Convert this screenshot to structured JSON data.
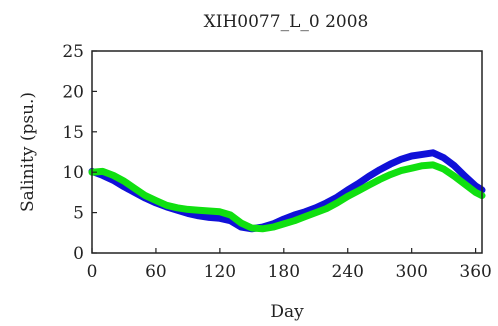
{
  "chart_data": {
    "type": "line",
    "title": "XIH0077_L_0 2008",
    "xlabel": "Day",
    "ylabel": "Salinity (psu.)",
    "xlim": [
      0,
      366
    ],
    "ylim": [
      0,
      25
    ],
    "x_ticks": [
      0,
      60,
      120,
      180,
      240,
      300,
      360
    ],
    "y_ticks": [
      0,
      5,
      10,
      15,
      20,
      25
    ],
    "x_tick_labels": [
      "0",
      "60",
      "120",
      "180",
      "240",
      "300",
      "360"
    ],
    "y_tick_labels": [
      "0",
      "5",
      "10",
      "15",
      "20",
      "25"
    ],
    "grid": false,
    "legend": "none",
    "series": [
      {
        "color": "#1010d8",
        "x": [
          0,
          10,
          20,
          30,
          40,
          50,
          60,
          70,
          80,
          90,
          100,
          110,
          120,
          130,
          140,
          150,
          160,
          170,
          180,
          190,
          200,
          210,
          220,
          230,
          240,
          250,
          260,
          270,
          280,
          290,
          300,
          310,
          320,
          330,
          340,
          350,
          360,
          366
        ],
        "y": [
          10.1,
          9.6,
          9.0,
          8.2,
          7.5,
          6.8,
          6.2,
          5.7,
          5.3,
          4.9,
          4.6,
          4.4,
          4.3,
          4.0,
          3.2,
          3.0,
          3.2,
          3.6,
          4.2,
          4.7,
          5.1,
          5.6,
          6.2,
          6.9,
          7.8,
          8.6,
          9.5,
          10.3,
          11.0,
          11.6,
          12.0,
          12.2,
          12.4,
          11.8,
          10.8,
          9.5,
          8.3,
          7.8
        ]
      },
      {
        "color": "#10e010",
        "x": [
          0,
          10,
          20,
          30,
          40,
          50,
          60,
          70,
          80,
          90,
          100,
          110,
          120,
          130,
          140,
          150,
          160,
          170,
          180,
          190,
          200,
          210,
          220,
          230,
          240,
          250,
          260,
          270,
          280,
          290,
          300,
          310,
          320,
          330,
          340,
          350,
          360,
          366
        ],
        "y": [
          10.0,
          10.1,
          9.6,
          8.9,
          8.0,
          7.1,
          6.5,
          5.9,
          5.6,
          5.4,
          5.3,
          5.2,
          5.1,
          4.7,
          3.7,
          3.1,
          3.0,
          3.2,
          3.6,
          4.0,
          4.5,
          5.0,
          5.5,
          6.2,
          7.0,
          7.7,
          8.4,
          9.1,
          9.7,
          10.2,
          10.5,
          10.8,
          10.9,
          10.4,
          9.5,
          8.5,
          7.5,
          7.1
        ]
      }
    ]
  }
}
